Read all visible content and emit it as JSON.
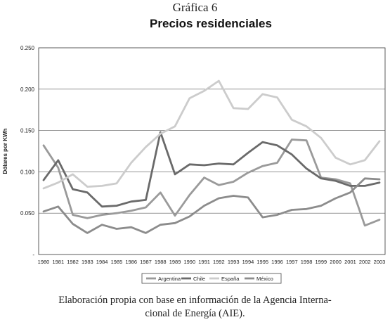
{
  "figure_label": "Gráfica 6",
  "source_line1": "Elaboración propia con base en información de la Agencia Interna-",
  "source_line2": "cional de Energía (AIE).",
  "chart_data": {
    "type": "line",
    "title": "Precios residenciales",
    "xlabel": "",
    "ylabel": "Dólares por KWh",
    "ylim": [
      0,
      0.25
    ],
    "yticks": [
      "-",
      "0.050",
      "0.100",
      "0.150",
      "0.200",
      "0.250"
    ],
    "grid": true,
    "legend_position": "bottom",
    "categories": [
      "1980",
      "1981",
      "1982",
      "1983",
      "1984",
      "1985",
      "1986",
      "1987",
      "1988",
      "1989",
      "1990",
      "1991",
      "1992",
      "1993",
      "1994",
      "1995",
      "1996",
      "1997",
      "1998",
      "1999",
      "2000",
      "2001",
      "2002",
      "2003"
    ],
    "series": [
      {
        "name": "Argentina",
        "color": "#9a9a9a",
        "values": [
          0.132,
          0.105,
          0.048,
          0.044,
          0.048,
          0.05,
          0.053,
          0.057,
          0.075,
          0.047,
          0.072,
          0.093,
          0.084,
          0.088,
          0.099,
          0.107,
          0.111,
          0.139,
          0.138,
          0.093,
          0.091,
          0.086,
          0.035,
          0.042
        ]
      },
      {
        "name": "Chile",
        "color": "#6a6a6a",
        "values": [
          0.09,
          0.114,
          0.079,
          0.075,
          0.058,
          0.059,
          0.064,
          0.066,
          0.148,
          0.097,
          0.109,
          0.108,
          0.11,
          0.109,
          0.123,
          0.136,
          0.132,
          0.121,
          0.104,
          0.092,
          0.089,
          0.083,
          0.083,
          0.087
        ]
      },
      {
        "name": "España",
        "color": "#cccccc",
        "values": [
          0.08,
          0.087,
          0.097,
          0.082,
          0.083,
          0.086,
          0.111,
          0.13,
          0.146,
          0.155,
          0.189,
          0.198,
          0.21,
          0.177,
          0.176,
          0.194,
          0.19,
          0.163,
          0.155,
          0.141,
          0.117,
          0.109,
          0.114,
          0.137
        ]
      },
      {
        "name": "México",
        "color": "#8c8c8c",
        "values": [
          0.052,
          0.058,
          0.037,
          0.026,
          0.036,
          0.031,
          0.033,
          0.026,
          0.036,
          0.038,
          0.046,
          0.059,
          0.068,
          0.071,
          0.069,
          0.045,
          0.048,
          0.054,
          0.055,
          0.059,
          0.068,
          0.075,
          0.092,
          0.091
        ]
      }
    ]
  }
}
